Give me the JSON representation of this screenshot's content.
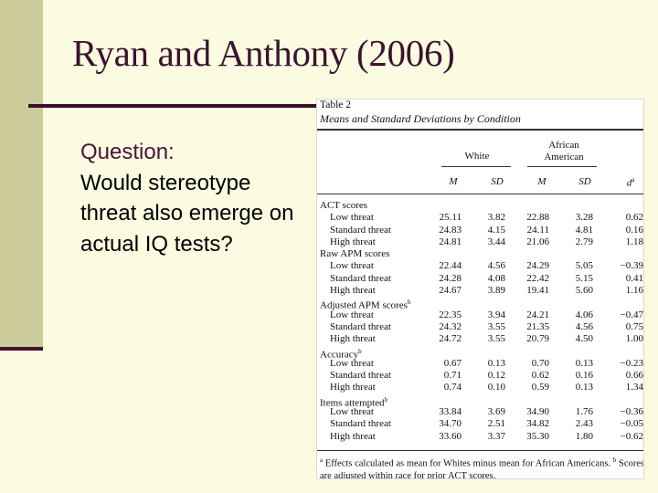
{
  "slide": {
    "title": "Ryan and Anthony (2006)",
    "question_label": "Question:",
    "question_text": "Would stereotype threat also emerge on actual IQ tests?"
  },
  "table": {
    "label": "Table 2",
    "caption": "Means and Standard Deviations by Condition",
    "group_white": "White",
    "group_african_line1": "African",
    "group_african_line2": "American",
    "col_headers": [
      "M",
      "SD",
      "M",
      "SD",
      "d"
    ],
    "d_superscript": "a",
    "rows": [
      {
        "label": "ACT scores",
        "sup": "",
        "sub": false,
        "values": []
      },
      {
        "label": "Low threat",
        "sup": "",
        "sub": true,
        "values": [
          "25.11",
          "3.82",
          "22.88",
          "3.28",
          "0.62"
        ]
      },
      {
        "label": "Standard threat",
        "sup": "",
        "sub": true,
        "values": [
          "24.83",
          "4.15",
          "24.11",
          "4.81",
          "0.16"
        ]
      },
      {
        "label": "High threat",
        "sup": "",
        "sub": true,
        "values": [
          "24.81",
          "3.44",
          "21.06",
          "2.79",
          "1.18"
        ]
      },
      {
        "label": "Raw APM scores",
        "sup": "",
        "sub": false,
        "values": []
      },
      {
        "label": "Low threat",
        "sup": "",
        "sub": true,
        "values": [
          "22.44",
          "4.56",
          "24.29",
          "5.05",
          "−0.39"
        ]
      },
      {
        "label": "Standard threat",
        "sup": "",
        "sub": true,
        "values": [
          "24.28",
          "4.08",
          "22.42",
          "5.15",
          "0.41"
        ]
      },
      {
        "label": "High threat",
        "sup": "",
        "sub": true,
        "values": [
          "24.67",
          "3.89",
          "19.41",
          "5.60",
          "1.16"
        ]
      },
      {
        "label": "Adjusted APM scores",
        "sup": "b",
        "sub": false,
        "values": []
      },
      {
        "label": "Low threat",
        "sup": "",
        "sub": true,
        "values": [
          "22.35",
          "3.94",
          "24.21",
          "4.06",
          "−0.47"
        ]
      },
      {
        "label": "Standard threat",
        "sup": "",
        "sub": true,
        "values": [
          "24.32",
          "3.55",
          "21.35",
          "4.56",
          "0.75"
        ]
      },
      {
        "label": "High threat",
        "sup": "",
        "sub": true,
        "values": [
          "24.72",
          "3.55",
          "20.79",
          "4.50",
          "1.00"
        ]
      },
      {
        "label": "Accuracy",
        "sup": "b",
        "sub": false,
        "values": []
      },
      {
        "label": "Low threat",
        "sup": "",
        "sub": true,
        "values": [
          "0.67",
          "0.13",
          "0.70",
          "0.13",
          "−0.23"
        ]
      },
      {
        "label": "Standard threat",
        "sup": "",
        "sub": true,
        "values": [
          "0.71",
          "0.12",
          "0.62",
          "0.16",
          "0.66"
        ]
      },
      {
        "label": "High threat",
        "sup": "",
        "sub": true,
        "values": [
          "0.74",
          "0.10",
          "0.59",
          "0.13",
          "1.34"
        ]
      },
      {
        "label": "Items attempted",
        "sup": "b",
        "sub": false,
        "values": []
      },
      {
        "label": "Low threat",
        "sup": "",
        "sub": true,
        "values": [
          "33.84",
          "3.69",
          "34.90",
          "1.76",
          "−0.36"
        ]
      },
      {
        "label": "Standard threat",
        "sup": "",
        "sub": true,
        "values": [
          "34.70",
          "2.51",
          "34.82",
          "2.43",
          "−0.05"
        ]
      },
      {
        "label": "High threat",
        "sup": "",
        "sub": true,
        "values": [
          "33.60",
          "3.37",
          "35.30",
          "1.80",
          "−0.62"
        ]
      }
    ],
    "footnote_a_mark": "a",
    "footnote_a": "Effects calculated as mean for Whites minus mean for African Americans.",
    "footnote_b_mark": "b",
    "footnote_b": "Scores are adjusted within race for prior ACT scores."
  }
}
